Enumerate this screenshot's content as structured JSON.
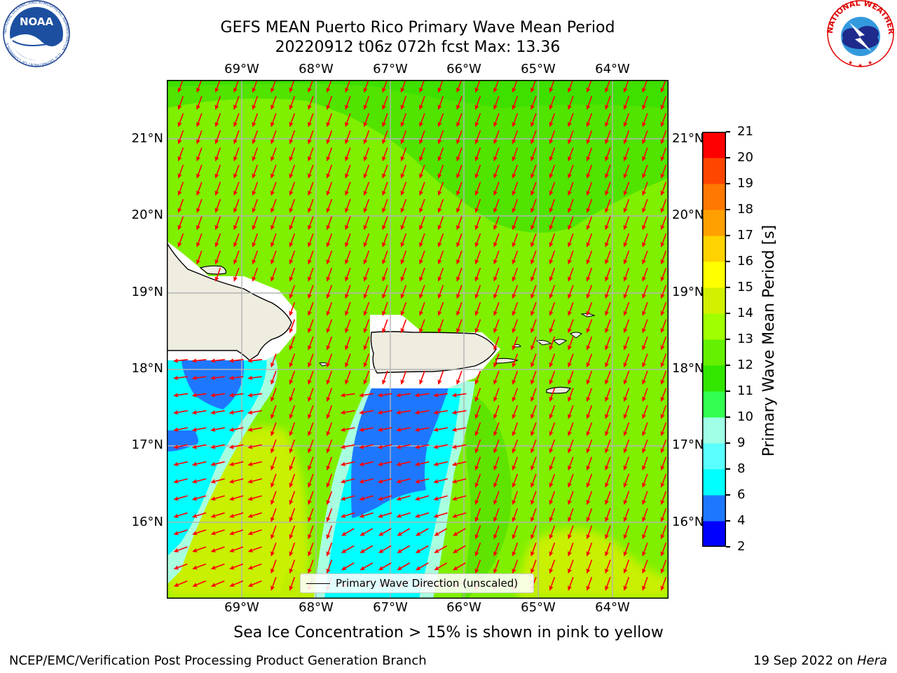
{
  "header": {
    "title_line1": "GEFS MEAN Puerto Rico Primary Wave Mean Period",
    "title_line2": "20220912 t06z 072h fcst   Max: 13.36"
  },
  "logos": {
    "noaa_text": "NOAA",
    "noaa_ring": "NATIONAL OCEANIC AND ATMOSPHERIC ADMINISTRATION · U.S. DEPARTMENT OF COMMERCE",
    "nws_ring": "NATIONAL WEATHER SERVICE"
  },
  "map": {
    "lon_labels": [
      "69°W",
      "68°W",
      "67°W",
      "66°W",
      "65°W",
      "64°W"
    ],
    "lat_labels": [
      "21°N",
      "20°N",
      "19°N",
      "18°N",
      "17°N",
      "16°N"
    ],
    "arrow_color": "#ff0000",
    "land_color": "#efece0"
  },
  "legend": {
    "label": "Primary Wave Direction (unscaled)"
  },
  "colorbar": {
    "label": "Primary Wave Mean Period [s]",
    "ticks": [
      "2",
      "4",
      "6",
      "8",
      "9",
      "10",
      "11",
      "12",
      "13",
      "14",
      "15",
      "16",
      "17",
      "18",
      "19",
      "20",
      "21"
    ],
    "colors": [
      "#0000ff",
      "#1e78ff",
      "#00ffff",
      "#5affff",
      "#a0ffe6",
      "#32ff50",
      "#32e600",
      "#64f000",
      "#a0ff00",
      "#d2f000",
      "#ffff00",
      "#ffd200",
      "#ffa000",
      "#ff7800",
      "#ff4600",
      "#ff0000"
    ]
  },
  "footer": {
    "subtitle": "Sea Ice Concentration > 15% is shown in pink to yellow",
    "left": "NCEP/EMC/Verification Post Processing Product Generation Branch",
    "right_date": "19 Sep 2022 on ",
    "right_host": "Hera"
  }
}
